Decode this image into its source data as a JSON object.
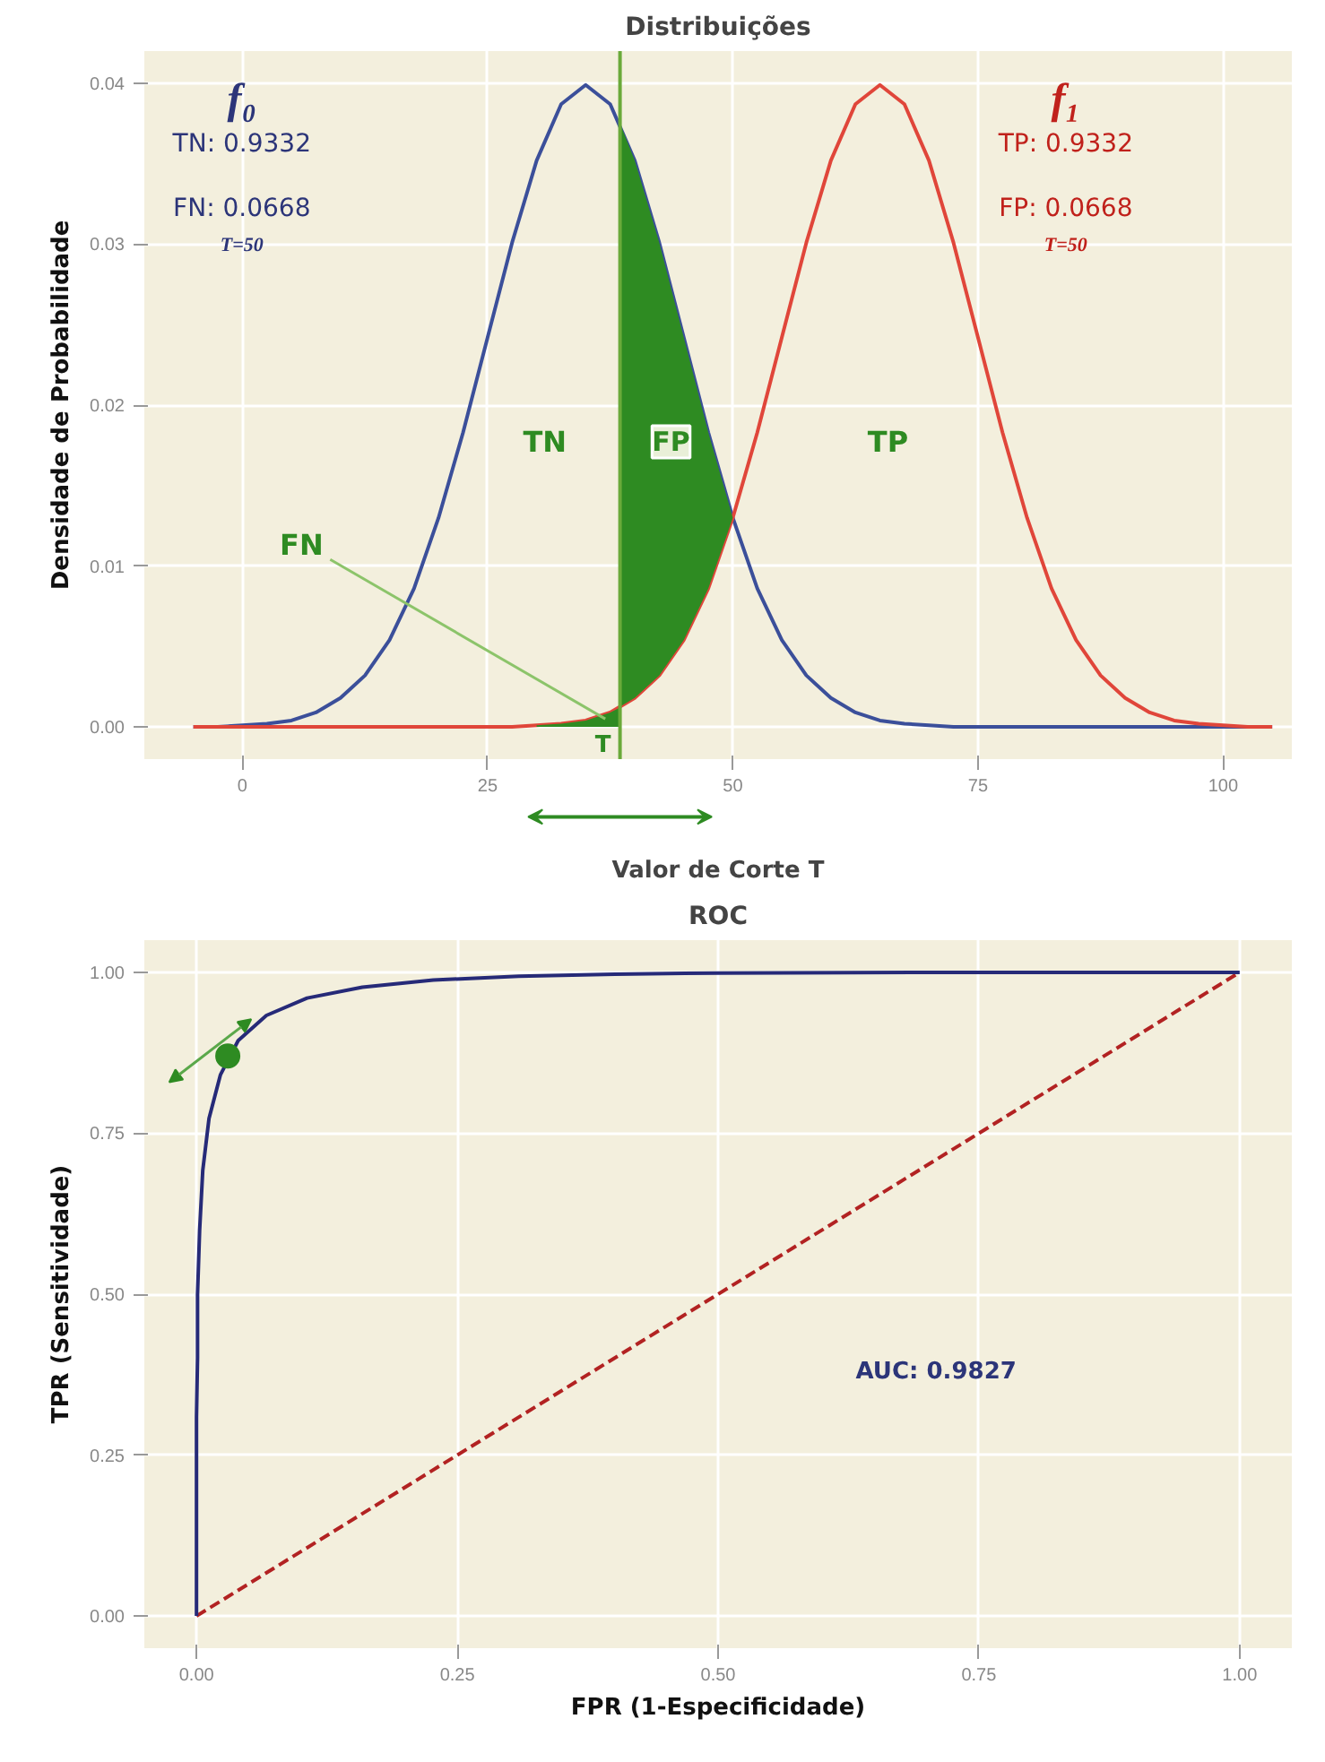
{
  "chart_data": [
    {
      "type": "line",
      "title": "Distribuições",
      "xlabel": "Valor de Corte T",
      "ylabel": "Densidade de Probabilidade",
      "xlim": [
        -10,
        107
      ],
      "xticks": [
        0,
        25,
        50,
        75,
        100
      ],
      "ylim": [
        -0.002,
        0.042
      ],
      "yticks": [
        {
          "value": 0,
          "label": "0.00"
        },
        {
          "value": 0.01,
          "label": "0.01"
        },
        {
          "value": 0.02,
          "label": "0.02"
        },
        {
          "value": 0.03,
          "label": "0.03"
        },
        {
          "value": 0.04,
          "label": "0.04"
        }
      ],
      "grid": true,
      "x": [
        -5,
        -2.5,
        0,
        2.5,
        5,
        7.5,
        10,
        12.5,
        15,
        17.5,
        20,
        22.5,
        25,
        27.5,
        30,
        32.5,
        35,
        37.5,
        40,
        42.5,
        45,
        47.5,
        50,
        52.5,
        55,
        57.5,
        60,
        62.5,
        65,
        67.5,
        70,
        72.5,
        75,
        77.5,
        80,
        82.5,
        85,
        87.5,
        90,
        92.5,
        95,
        97.5,
        100,
        102.5,
        105
      ],
      "series": [
        {
          "color": "#3b4f9a",
          "values": [
            0,
            0,
            0.0001,
            0.0002,
            0.0004,
            0.0009,
            0.0018,
            0.0032,
            0.0054,
            0.0086,
            0.013,
            0.0183,
            0.0242,
            0.0301,
            0.0352,
            0.0387,
            0.0399,
            0.0387,
            0.0352,
            0.0301,
            0.0242,
            0.0183,
            0.013,
            0.0086,
            0.0054,
            0.0032,
            0.0018,
            0.0009,
            0.0004,
            0.0002,
            0.0001,
            0,
            0,
            0,
            0,
            0,
            0,
            0,
            0,
            0,
            0,
            0,
            0,
            0,
            0
          ]
        },
        {
          "color": "#e0463a",
          "values": [
            0,
            0,
            0,
            0,
            0,
            0,
            0,
            0,
            0,
            0,
            0,
            0,
            0,
            0,
            0.0001,
            0.0002,
            0.0004,
            0.0009,
            0.0018,
            0.0032,
            0.0054,
            0.0086,
            0.013,
            0.0183,
            0.0242,
            0.0301,
            0.0352,
            0.0387,
            0.0399,
            0.0387,
            0.0352,
            0.0301,
            0.0242,
            0.0183,
            0.013,
            0.0086,
            0.0054,
            0.0032,
            0.0018,
            0.0009,
            0.0004,
            0.0002,
            0.0001,
            0,
            0
          ]
        },
        {
          "type": "area",
          "color": "#2e8b22",
          "x": [
            38.5,
            40,
            42.5,
            45,
            47.5,
            50
          ],
          "values": [
            0.0375,
            0.0352,
            0.0301,
            0.0242,
            0.0183,
            0.013
          ]
        },
        {
          "type": "area",
          "color": "#2e8b22",
          "x": [
            30,
            32.5,
            35,
            37.5,
            38.5
          ],
          "values": [
            0.0001,
            0.0002,
            0.0004,
            0.0009,
            0.0012
          ]
        }
      ],
      "ref_lines": [
        {
          "axis": "x",
          "value": 38.5,
          "label": "T",
          "color": "#6aaa3a"
        }
      ],
      "annotations": [
        "f₀",
        "TN: 0.9332",
        "FN: 0.0668",
        "T=50",
        "f₁",
        "TP: 0.9332",
        "FP: 0.0668",
        "T=50",
        "TN",
        "FP",
        "TP",
        {
          "text": "FN",
          "x": 37,
          "y": 0.0005
        }
      ]
    },
    {
      "type": "line",
      "title": "ROC",
      "xlabel": "FPR (1-Especificidade)",
      "ylabel": "TPR (Sensitividade)",
      "xlim": [
        -0.05,
        1.05
      ],
      "xticks": [
        {
          "value": 0,
          "label": "0.00"
        },
        {
          "value": 0.25,
          "label": "0.25"
        },
        {
          "value": 0.5,
          "label": "0.50"
        },
        {
          "value": 0.75,
          "label": "0.75"
        },
        {
          "value": 1,
          "label": "1.00"
        }
      ],
      "ylim": [
        -0.05,
        1.05
      ],
      "yticks": [
        {
          "value": 0,
          "label": "0.00"
        },
        {
          "value": 0.25,
          "label": "0.25"
        },
        {
          "value": 0.5,
          "label": "0.50"
        },
        {
          "value": 0.75,
          "label": "0.75"
        },
        {
          "value": 1,
          "label": "1.00"
        }
      ],
      "grid": true,
      "series": [
        {
          "color": "#b22222",
          "line_style": "dashed",
          "x": [
            0,
            1
          ],
          "values": [
            0,
            1
          ]
        },
        {
          "color": "#262a78",
          "x": [
            0,
            0,
            0,
            0.001,
            0.001,
            0.003,
            0.006,
            0.012,
            0.023,
            0.04,
            0.067,
            0.106,
            0.159,
            0.227,
            0.309,
            0.401,
            0.5,
            0.692,
            0.841,
            1
          ],
          "values": [
            0,
            0.159,
            0.309,
            0.401,
            0.5,
            0.599,
            0.692,
            0.773,
            0.841,
            0.894,
            0.933,
            0.96,
            0.977,
            0.988,
            0.994,
            0.997,
            0.999,
            1,
            1,
            1
          ]
        },
        {
          "type": "scatter",
          "color": "#2e8b22",
          "marker": "circle",
          "x": [
            0.03
          ],
          "values": [
            0.87
          ]
        }
      ],
      "annotations": [
        "AUC: 0.9827"
      ]
    }
  ]
}
